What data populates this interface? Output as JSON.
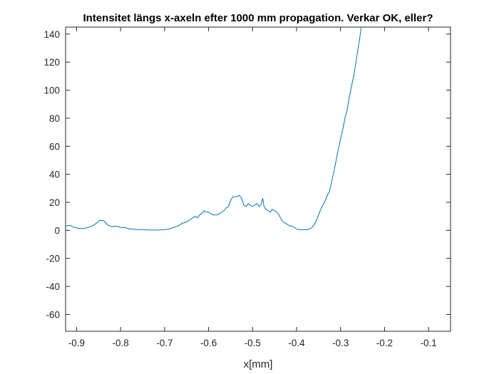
{
  "chart_data": {
    "type": "line",
    "title": "Intensitet längs x-axeln efter 1000 mm propagation. Verkar OK, eller?",
    "xlabel": "x[mm]",
    "ylabel": "",
    "xlim": [
      -0.925,
      -0.05
    ],
    "ylim": [
      -72,
      145
    ],
    "xticks": [
      -0.9,
      -0.8,
      -0.7,
      -0.6,
      -0.5,
      -0.4,
      -0.3,
      -0.2,
      -0.1
    ],
    "xtick_labels": [
      "-0.9",
      "-0.8",
      "-0.7",
      "-0.6",
      "-0.5",
      "-0.4",
      "-0.3",
      "-0.2",
      "-0.1"
    ],
    "yticks": [
      -60,
      -40,
      -20,
      0,
      20,
      40,
      60,
      80,
      100,
      120,
      140
    ],
    "ytick_labels": [
      "-60",
      "-40",
      "-20",
      "0",
      "20",
      "40",
      "60",
      "80",
      "100",
      "120",
      "140"
    ],
    "grid": false,
    "line_color": "#0072BD",
    "series": [
      {
        "x": [
          -0.925,
          -0.915,
          -0.905,
          -0.895,
          -0.885,
          -0.875,
          -0.865,
          -0.855,
          -0.848,
          -0.84,
          -0.835,
          -0.83,
          -0.82,
          -0.81,
          -0.8,
          -0.79,
          -0.78,
          -0.77,
          -0.76,
          -0.75,
          -0.74,
          -0.73,
          -0.72,
          -0.71,
          -0.7,
          -0.69,
          -0.68,
          -0.67,
          -0.66,
          -0.65,
          -0.645,
          -0.64,
          -0.635,
          -0.63,
          -0.625,
          -0.62,
          -0.615,
          -0.61,
          -0.605,
          -0.6,
          -0.595,
          -0.59,
          -0.585,
          -0.58,
          -0.575,
          -0.57,
          -0.565,
          -0.56,
          -0.555,
          -0.55,
          -0.545,
          -0.54,
          -0.535,
          -0.53,
          -0.525,
          -0.52,
          -0.515,
          -0.51,
          -0.505,
          -0.5,
          -0.495,
          -0.49,
          -0.485,
          -0.48,
          -0.477,
          -0.474,
          -0.47,
          -0.465,
          -0.46,
          -0.455,
          -0.45,
          -0.445,
          -0.44,
          -0.435,
          -0.43,
          -0.425,
          -0.42,
          -0.415,
          -0.41,
          -0.405,
          -0.4,
          -0.395,
          -0.39,
          -0.385,
          -0.38,
          -0.375,
          -0.37,
          -0.365,
          -0.36,
          -0.355,
          -0.35,
          -0.345,
          -0.34,
          -0.335,
          -0.33,
          -0.325,
          -0.32,
          -0.315,
          -0.31,
          -0.305,
          -0.3,
          -0.295,
          -0.29,
          -0.285,
          -0.28,
          -0.275,
          -0.27,
          -0.265,
          -0.26,
          -0.255,
          -0.252
        ],
        "y": [
          3,
          3.5,
          2,
          1.5,
          1.2,
          2,
          3,
          5,
          7,
          7,
          6,
          4,
          2.5,
          3,
          2,
          2,
          1,
          0.8,
          0.5,
          0.5,
          0.3,
          0.2,
          0.2,
          0.3,
          0.5,
          1,
          2,
          3,
          5,
          6,
          7,
          8,
          9,
          10,
          9,
          11,
          12,
          14,
          13,
          13,
          12,
          11,
          11,
          11,
          12,
          13,
          14,
          16,
          17,
          21,
          24,
          24,
          24,
          25,
          23,
          18,
          17,
          19,
          18,
          17,
          18,
          19,
          17,
          19,
          23,
          17,
          15,
          14,
          13,
          15,
          14,
          13,
          11,
          8,
          6,
          5,
          4,
          3,
          3,
          2,
          1,
          0.5,
          0.5,
          0.5,
          0.5,
          0.5,
          1,
          2,
          4,
          7,
          11,
          15,
          18,
          21,
          25,
          28,
          35,
          42,
          50,
          58,
          65,
          72,
          80,
          86,
          95,
          103,
          110,
          120,
          130,
          140,
          147
        ]
      }
    ]
  }
}
